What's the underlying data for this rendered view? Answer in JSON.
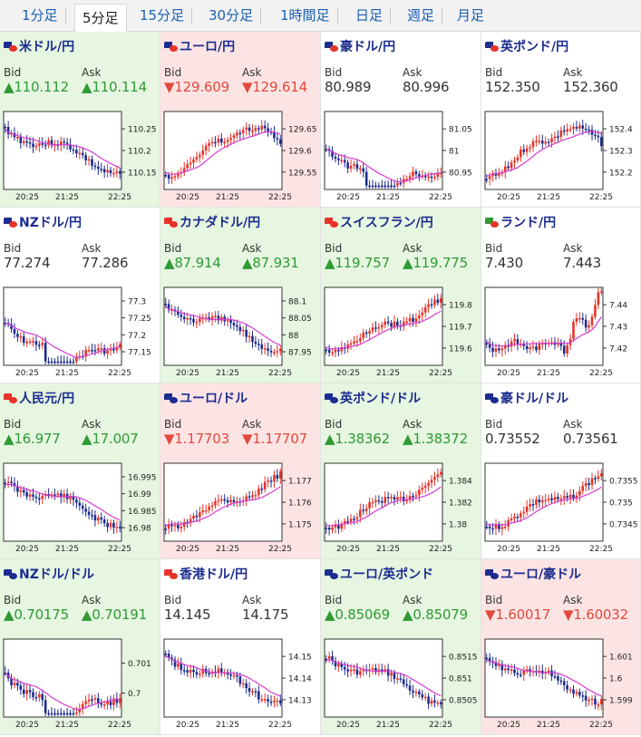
{
  "tabs": [
    "1分足",
    "5分足",
    "15分足",
    "30分足",
    "1時間足",
    "日足",
    "週足",
    "月足"
  ],
  "active_tab": "5分足",
  "colors": {
    "up_bg": "#e6f6e1",
    "down_bg": "#fde4e4",
    "up_text": "#2f9a33",
    "down_text": "#e2493c",
    "candle_up": "#e8332a",
    "candle_down": "#1c2c8f",
    "ma": "#d63bd0",
    "ma2": "#1aa3c8",
    "pair_text": "#1c2c8f"
  },
  "labels": {
    "bid": "Bid",
    "ask": "Ask"
  },
  "cards": [
    {
      "pair": "米ドル/円",
      "flag": [
        "#1c2c8f",
        "#e8332a"
      ],
      "trend": "up",
      "bid": "▲110.112",
      "ask": "▲110.114",
      "ticks": [
        "110.25",
        "110.2",
        "110.15"
      ],
      "xt": [
        "20:25",
        "21:25",
        "22:25"
      ],
      "shape": "down"
    },
    {
      "pair": "ユーロ/円",
      "flag": [
        "#1c2c8f",
        "#e8332a"
      ],
      "trend": "down",
      "bid": "▼129.609",
      "ask": "▼129.614",
      "ticks": [
        "129.65",
        "129.6",
        "129.55"
      ],
      "xt": [
        "20:25",
        "21:25",
        "22:25"
      ],
      "shape": "rise_peak"
    },
    {
      "pair": "豪ドル/円",
      "flag": [
        "#1c2c8f",
        "#e8332a"
      ],
      "trend": "flat",
      "bid": "80.989",
      "ask": "80.996",
      "ticks": [
        "81.05",
        "81",
        "80.95"
      ],
      "xt": [
        "20:25",
        "21:25",
        "22:25"
      ],
      "shape": "valley_up"
    },
    {
      "pair": "英ポンド/円",
      "flag": [
        "#1c2c8f",
        "#e8332a"
      ],
      "trend": "flat",
      "bid": "152.350",
      "ask": "152.360",
      "ticks": [
        "152.4",
        "152.3",
        "152.2"
      ],
      "xt": [
        "20:25",
        "21:25",
        "22:25"
      ],
      "shape": "rise_peak"
    },
    {
      "pair": "NZドル/円",
      "flag": [
        "#1c2c8f",
        "#e8332a"
      ],
      "trend": "flat",
      "bid": "77.274",
      "ask": "77.286",
      "ticks": [
        "77.3",
        "77.25",
        "77.2",
        "77.15"
      ],
      "xt": [
        "20:25",
        "21:25",
        "22:25"
      ],
      "shape": "valley_up"
    },
    {
      "pair": "カナダドル/円",
      "flag": [
        "#e8332a",
        "#e8332a"
      ],
      "trend": "up",
      "bid": "▲87.914",
      "ask": "▲87.931",
      "ticks": [
        "88.1",
        "88.05",
        "88",
        "87.95"
      ],
      "xt": [
        "20:25",
        "21:25",
        "22:25"
      ],
      "shape": "down"
    },
    {
      "pair": "スイスフラン/円",
      "flag": [
        "#e8332a",
        "#e8332a"
      ],
      "trend": "up",
      "bid": "▲119.757",
      "ask": "▲119.775",
      "ticks": [
        "119.8",
        "119.7",
        "119.6"
      ],
      "xt": [
        "20:25",
        "21:25",
        "22:25"
      ],
      "shape": "up"
    },
    {
      "pair": "ランド/円",
      "flag": [
        "#2f9a33",
        "#e8332a"
      ],
      "trend": "flat",
      "bid": "7.430",
      "ask": "7.443",
      "ticks": [
        "7.44",
        "7.43",
        "7.42"
      ],
      "xt": [
        "20:25",
        "21:25",
        "22:25"
      ],
      "shape": "flat_spike"
    },
    {
      "pair": "人民元/円",
      "flag": [
        "#e8332a",
        "#e8332a"
      ],
      "trend": "up",
      "bid": "▲16.977",
      "ask": "▲17.007",
      "ticks": [
        "16.995",
        "16.99",
        "16.985",
        "16.98"
      ],
      "xt": [
        "20:25",
        "21:25",
        "22:25"
      ],
      "shape": "down"
    },
    {
      "pair": "ユーロ/ドル",
      "flag": [
        "#1c2c8f",
        "#1c2c8f"
      ],
      "trend": "down",
      "bid": "▼1.17703",
      "ask": "▼1.17707",
      "ticks": [
        "1.177",
        "1.176",
        "1.175"
      ],
      "xt": [
        "20:25",
        "21:25",
        "22:25"
      ],
      "shape": "up"
    },
    {
      "pair": "英ポンド/ドル",
      "flag": [
        "#1c2c8f",
        "#1c2c8f"
      ],
      "trend": "up",
      "bid": "▲1.38362",
      "ask": "▲1.38372",
      "ticks": [
        "1.384",
        "1.382",
        "1.38"
      ],
      "xt": [
        "20:25",
        "21:25",
        "22:25"
      ],
      "shape": "up"
    },
    {
      "pair": "豪ドル/ドル",
      "flag": [
        "#1c2c8f",
        "#1c2c8f"
      ],
      "trend": "flat",
      "bid": "0.73552",
      "ask": "0.73561",
      "ticks": [
        "0.7355",
        "0.735",
        "0.7345"
      ],
      "xt": [
        "20:25",
        "21:25",
        "22:25"
      ],
      "shape": "up"
    },
    {
      "pair": "NZドル/ドル",
      "flag": [
        "#1c2c8f",
        "#1c2c8f"
      ],
      "trend": "up",
      "bid": "▲0.70175",
      "ask": "▲0.70191",
      "ticks": [
        "0.701",
        "0.7"
      ],
      "xt": [
        "20:25",
        "21:25",
        "22:25"
      ],
      "shape": "valley_up"
    },
    {
      "pair": "香港ドル/円",
      "flag": [
        "#e8332a",
        "#e8332a"
      ],
      "trend": "flat",
      "bid": "14.145",
      "ask": "14.175",
      "ticks": [
        "14.15",
        "14.14",
        "14.13"
      ],
      "xt": [
        "20:25",
        "21:25",
        "22:25"
      ],
      "shape": "down"
    },
    {
      "pair": "ユーロ/英ポンド",
      "flag": [
        "#1c2c8f",
        "#1c2c8f"
      ],
      "trend": "up",
      "bid": "▲0.85069",
      "ask": "▲0.85079",
      "ticks": [
        "0.8515",
        "0.851",
        "0.8505"
      ],
      "xt": [
        "20:25",
        "21:25",
        "22:25"
      ],
      "shape": "down"
    },
    {
      "pair": "ユーロ/豪ドル",
      "flag": [
        "#1c2c8f",
        "#1c2c8f"
      ],
      "trend": "down",
      "bid": "▼1.60017",
      "ask": "▼1.60032",
      "ticks": [
        "1.601",
        "1.6",
        "1.599"
      ],
      "xt": [
        "20:25",
        "21:25",
        "22:25"
      ],
      "shape": "down"
    }
  ]
}
